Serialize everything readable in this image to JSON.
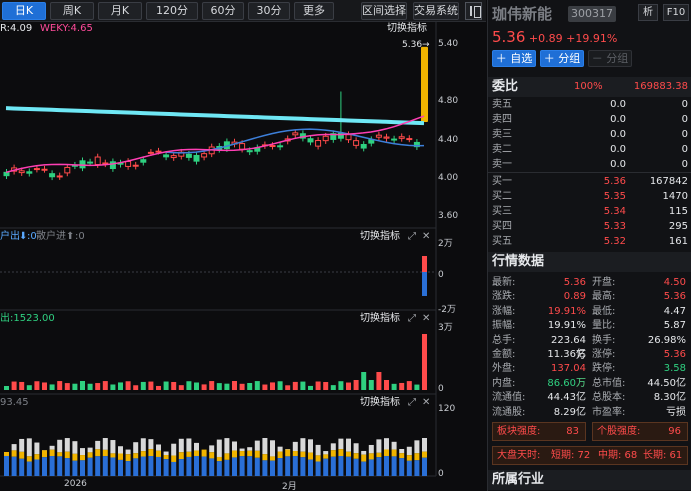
{
  "toolbar": {
    "periods": [
      {
        "label": "日K"
      },
      {
        "label": "周K"
      },
      {
        "label": "月K"
      },
      {
        "label": "120分"
      },
      {
        "label": "60分"
      },
      {
        "label": "30分"
      },
      {
        "label": "更多"
      }
    ],
    "range_select": "区间选择",
    "trade_system": "交易系统"
  },
  "main_chart": {
    "indicator_text": "R:4.09",
    "wky_text": "WEKY:4.65",
    "switch_label": "切换指标",
    "price_marker": "5.36→",
    "yticks": [
      "5.40",
      "4.80",
      "4.40",
      "4.00",
      "3.60"
    ]
  },
  "flow_pane": {
    "legend_text": "户出",
    "legend_value": ":0",
    "retail_text": "散户进",
    "retail_value": ":0",
    "switch_label": "切换指标",
    "yticks": [
      "2万",
      "0",
      "-2万"
    ]
  },
  "vol_pane": {
    "legend_text": "出:1523.00",
    "switch_label": "切换指标",
    "yticks": [
      "3万",
      "0"
    ]
  },
  "bottom_pane": {
    "legend_text": "93.45",
    "switch_label": "切换指标",
    "yticks": [
      "120",
      "0"
    ]
  },
  "x_labels": [
    "2026",
    "2月"
  ],
  "stock": {
    "name": "珈伟新能",
    "code": "300317",
    "btn_analysis": "析",
    "btn_f10": "F10",
    "price": "5.36",
    "change": "+0.89",
    "change_pct": "+19.91%",
    "add_watch": "＋ 自选",
    "add_group": "＋ 分组",
    "sub_group": "－ 分组"
  },
  "order_book": {
    "title": "委比",
    "ratio": "100%",
    "diff": "169883.38",
    "asks": [
      {
        "label": "卖五",
        "price": "0.0",
        "vol": "0"
      },
      {
        "label": "卖四",
        "price": "0.0",
        "vol": "0"
      },
      {
        "label": "卖三",
        "price": "0.0",
        "vol": "0"
      },
      {
        "label": "卖二",
        "price": "0.0",
        "vol": "0"
      },
      {
        "label": "卖一",
        "price": "0.0",
        "vol": "0"
      }
    ],
    "bids": [
      {
        "label": "买一",
        "price": "5.36",
        "vol": "167842"
      },
      {
        "label": "买二",
        "price": "5.35",
        "vol": "1470"
      },
      {
        "label": "买三",
        "price": "5.34",
        "vol": "115"
      },
      {
        "label": "买四",
        "price": "5.33",
        "vol": "295"
      },
      {
        "label": "买五",
        "price": "5.32",
        "vol": "161"
      }
    ]
  },
  "quote_data": {
    "title": "行情数据",
    "rows": [
      {
        "l1": "最新:",
        "v1": "5.36",
        "c1": "red",
        "l2": "开盘:",
        "v2": "4.50",
        "c2": "red"
      },
      {
        "l1": "涨跌:",
        "v1": "0.89",
        "c1": "red",
        "l2": "最高:",
        "v2": "5.36",
        "c2": "red"
      },
      {
        "l1": "涨幅:",
        "v1": "19.91%",
        "c1": "red",
        "l2": "最低:",
        "v2": "4.47",
        "c2": "white"
      },
      {
        "l1": "振幅:",
        "v1": "19.91%",
        "c1": "white",
        "l2": "量比:",
        "v2": "5.87",
        "c2": "white"
      },
      {
        "l1": "总手:",
        "v1": "223.64万",
        "c1": "white",
        "l2": "换手:",
        "v2": "26.98%",
        "c2": "white"
      },
      {
        "l1": "金额:",
        "v1": "11.36亿",
        "c1": "white",
        "l2": "涨停:",
        "v2": "5.36",
        "c2": "red"
      },
      {
        "l1": "外盘:",
        "v1": "137.04万",
        "c1": "red",
        "l2": "跌停:",
        "v2": "3.58",
        "c2": "green"
      },
      {
        "l1": "内盘:",
        "v1": "86.60万",
        "c1": "green",
        "l2": "总市值:",
        "v2": "44.50亿",
        "c2": "white"
      },
      {
        "l1": "流通值:",
        "v1": "44.43亿",
        "c1": "white",
        "l2": "总股本:",
        "v2": "8.30亿",
        "c2": "white"
      },
      {
        "l1": "流通股:",
        "v1": "8.29亿",
        "c1": "white",
        "l2": "市盈率:",
        "v2": "亏损",
        "c2": "white"
      }
    ]
  },
  "strength": {
    "block_label": "板块强度:",
    "block_value": "83",
    "stock_label": "个股强度:",
    "stock_value": "96"
  },
  "dapan": {
    "label": "大盘天时:",
    "short": "短期: 72",
    "mid": "中期: 68",
    "long": "长期: 61"
  },
  "industry": {
    "title": "所属行业"
  },
  "colors": {
    "up": "#ff4b4b",
    "down": "#2fd080",
    "ma_cyan": "#6fe8f5",
    "ma_pink": "#ff3fb4",
    "ma_blue": "#3d7fd9",
    "limit_bar": "#f0b400"
  }
}
